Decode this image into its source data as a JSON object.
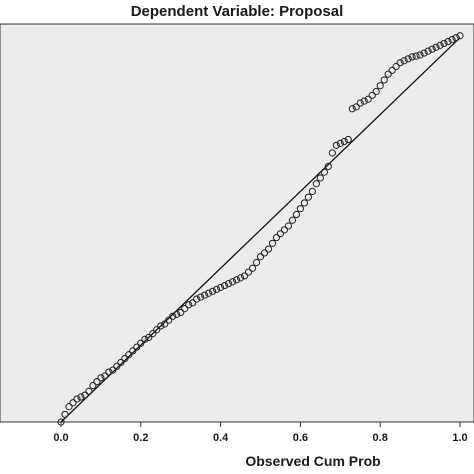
{
  "chart_data": {
    "type": "scatter",
    "title": "Dependent Variable: Proposal",
    "xlabel": "Observed Cum Prob",
    "ylabel": "",
    "xlim": [
      -0.035,
      1.025
    ],
    "ylim": [
      0,
      1.02
    ],
    "x_ticks": [
      "0.0",
      "0.2",
      "0.4",
      "0.6",
      "0.8",
      "1.0"
    ],
    "x_tick_values": [
      0.0,
      0.2,
      0.4,
      0.6,
      0.8,
      1.0
    ],
    "grid": false,
    "background": "#ececec",
    "marker": "open-circle",
    "reference_line": [
      [
        0,
        0
      ],
      [
        1,
        1
      ]
    ],
    "series": [
      {
        "points": [
          [
            0.0,
            0.0
          ],
          [
            0.01,
            0.02
          ],
          [
            0.02,
            0.04
          ],
          [
            0.03,
            0.05
          ],
          [
            0.04,
            0.06
          ],
          [
            0.05,
            0.065
          ],
          [
            0.06,
            0.07
          ],
          [
            0.07,
            0.08
          ],
          [
            0.08,
            0.095
          ],
          [
            0.09,
            0.105
          ],
          [
            0.1,
            0.115
          ],
          [
            0.11,
            0.12
          ],
          [
            0.12,
            0.13
          ],
          [
            0.13,
            0.135
          ],
          [
            0.14,
            0.145
          ],
          [
            0.15,
            0.155
          ],
          [
            0.16,
            0.165
          ],
          [
            0.17,
            0.175
          ],
          [
            0.18,
            0.185
          ],
          [
            0.19,
            0.195
          ],
          [
            0.2,
            0.205
          ],
          [
            0.21,
            0.215
          ],
          [
            0.22,
            0.22
          ],
          [
            0.23,
            0.23
          ],
          [
            0.24,
            0.24
          ],
          [
            0.25,
            0.25
          ],
          [
            0.26,
            0.255
          ],
          [
            0.27,
            0.265
          ],
          [
            0.28,
            0.275
          ],
          [
            0.29,
            0.28
          ],
          [
            0.3,
            0.285
          ],
          [
            0.31,
            0.295
          ],
          [
            0.32,
            0.305
          ],
          [
            0.33,
            0.31
          ],
          [
            0.34,
            0.32
          ],
          [
            0.35,
            0.325
          ],
          [
            0.36,
            0.33
          ],
          [
            0.37,
            0.335
          ],
          [
            0.38,
            0.34
          ],
          [
            0.39,
            0.345
          ],
          [
            0.4,
            0.35
          ],
          [
            0.41,
            0.355
          ],
          [
            0.42,
            0.36
          ],
          [
            0.43,
            0.365
          ],
          [
            0.44,
            0.37
          ],
          [
            0.45,
            0.375
          ],
          [
            0.46,
            0.38
          ],
          [
            0.47,
            0.39
          ],
          [
            0.48,
            0.4
          ],
          [
            0.49,
            0.415
          ],
          [
            0.5,
            0.43
          ],
          [
            0.51,
            0.44
          ],
          [
            0.52,
            0.45
          ],
          [
            0.53,
            0.465
          ],
          [
            0.54,
            0.48
          ],
          [
            0.55,
            0.49
          ],
          [
            0.56,
            0.5
          ],
          [
            0.57,
            0.51
          ],
          [
            0.58,
            0.525
          ],
          [
            0.59,
            0.54
          ],
          [
            0.6,
            0.555
          ],
          [
            0.61,
            0.57
          ],
          [
            0.62,
            0.585
          ],
          [
            0.63,
            0.6
          ],
          [
            0.64,
            0.62
          ],
          [
            0.65,
            0.635
          ],
          [
            0.66,
            0.65
          ],
          [
            0.67,
            0.665
          ],
          [
            0.68,
            0.7
          ],
          [
            0.69,
            0.72
          ],
          [
            0.7,
            0.725
          ],
          [
            0.71,
            0.73
          ],
          [
            0.72,
            0.735
          ],
          [
            0.73,
            0.815
          ],
          [
            0.74,
            0.82
          ],
          [
            0.75,
            0.83
          ],
          [
            0.76,
            0.835
          ],
          [
            0.77,
            0.84
          ],
          [
            0.78,
            0.85
          ],
          [
            0.79,
            0.86
          ],
          [
            0.8,
            0.875
          ],
          [
            0.81,
            0.89
          ],
          [
            0.82,
            0.905
          ],
          [
            0.83,
            0.915
          ],
          [
            0.84,
            0.925
          ],
          [
            0.85,
            0.935
          ],
          [
            0.86,
            0.94
          ],
          [
            0.87,
            0.945
          ],
          [
            0.88,
            0.95
          ],
          [
            0.89,
            0.952
          ],
          [
            0.9,
            0.955
          ],
          [
            0.91,
            0.96
          ],
          [
            0.92,
            0.965
          ],
          [
            0.93,
            0.97
          ],
          [
            0.94,
            0.975
          ],
          [
            0.95,
            0.98
          ],
          [
            0.96,
            0.985
          ],
          [
            0.97,
            0.99
          ],
          [
            0.98,
            0.995
          ],
          [
            0.99,
            1.0
          ],
          [
            1.0,
            1.005
          ]
        ]
      }
    ]
  }
}
